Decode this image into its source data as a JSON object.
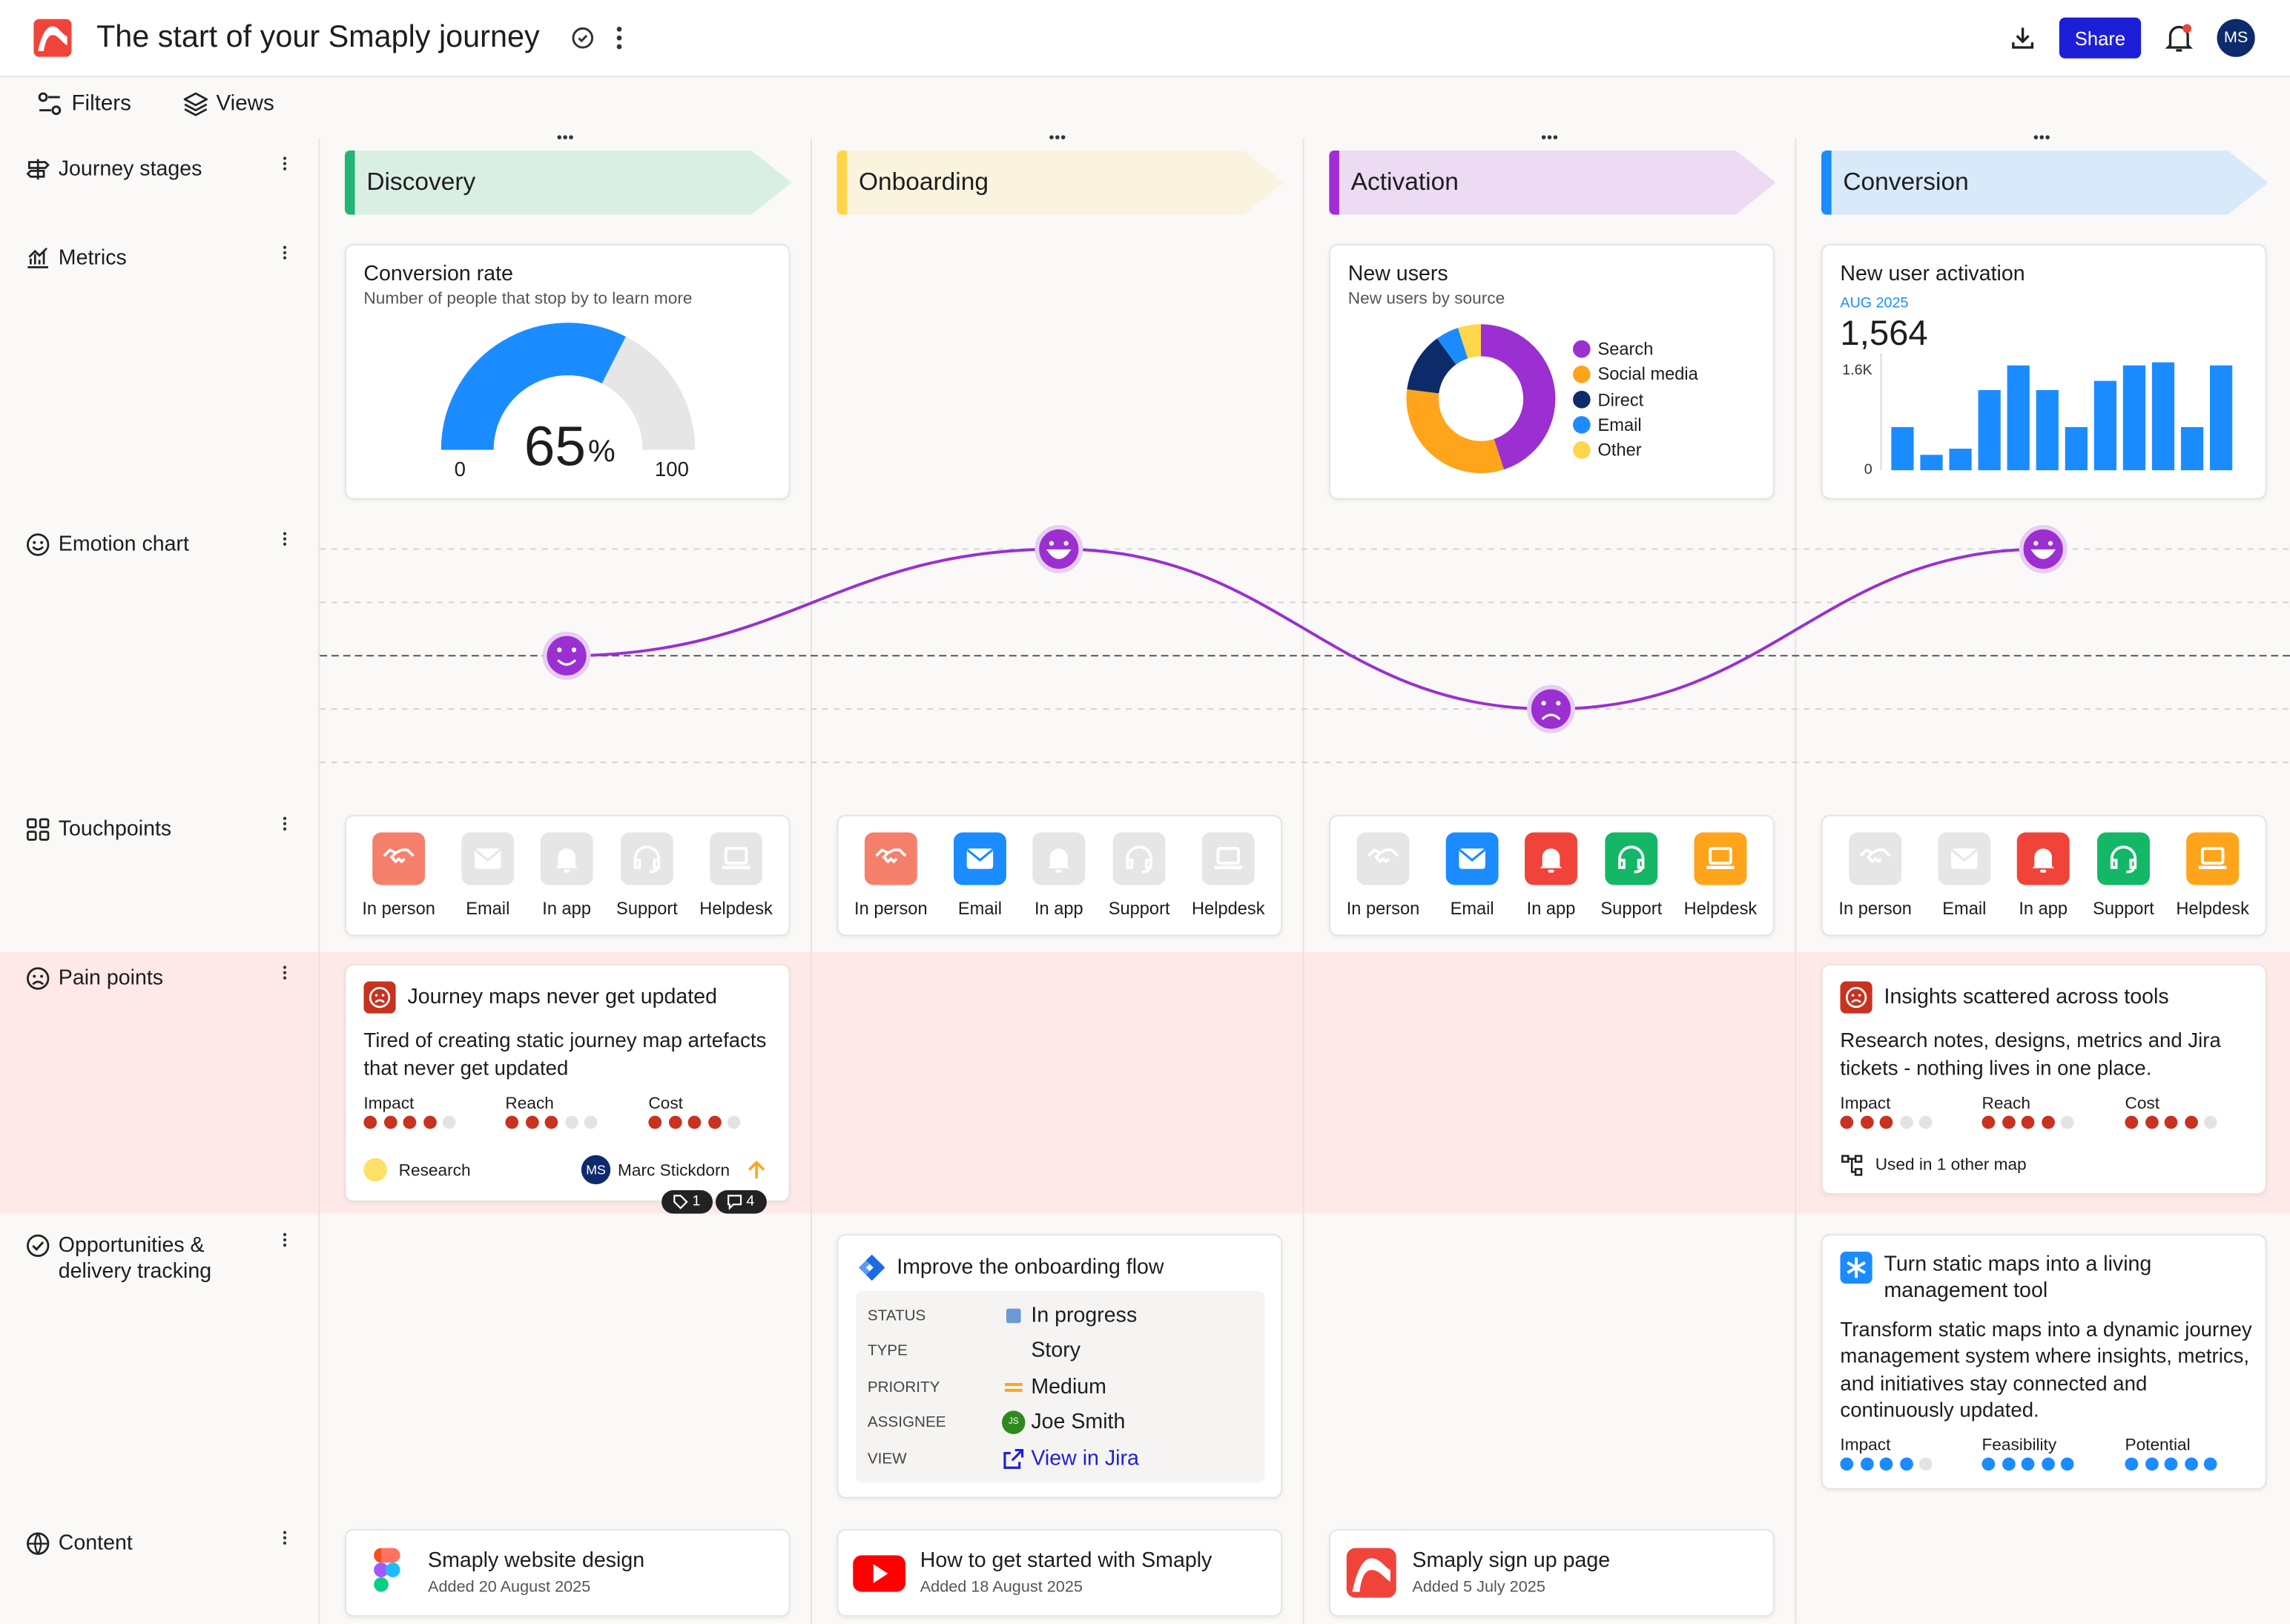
{
  "header": {
    "title": "The start of your Smaply journey",
    "share": "Share",
    "avatar": "MS"
  },
  "toolbar": {
    "filters": "Filters",
    "views": "Views"
  },
  "lanes": [
    "Journey stages",
    "Metrics",
    "Emotion chart",
    "Touchpoints",
    "Pain points",
    "Opportunities & delivery tracking",
    "Content"
  ],
  "stages": [
    {
      "name": "Discovery",
      "color": "#22b573"
    },
    {
      "name": "Onboarding",
      "color": "#ffd54a"
    },
    {
      "name": "Activation",
      "color": "#a02ed6"
    },
    {
      "name": "Conversion",
      "color": "#1a8cff"
    }
  ],
  "metrics": {
    "conversion": {
      "type": "gauge",
      "title": "Conversion rate",
      "subtitle": "Number of people that stop by to learn more",
      "value": 65,
      "unit": "%",
      "min": 0,
      "max": 100,
      "color": "#1a8cff"
    },
    "new_users": {
      "type": "donut",
      "title": "New users",
      "subtitle": "New users by source",
      "series": [
        {
          "name": "Search",
          "color": "#9b2fd1",
          "value": 45
        },
        {
          "name": "Social media",
          "color": "#ffa41b",
          "value": 32
        },
        {
          "name": "Direct",
          "color": "#0d2b6b",
          "value": 13
        },
        {
          "name": "Email",
          "color": "#1a8cff",
          "value": 5
        },
        {
          "name": "Other",
          "color": "#ffd54a",
          "value": 5
        }
      ]
    },
    "activation": {
      "type": "bar",
      "title": "New user activation",
      "period": "AUG 2025",
      "total": {
        "value": 1564,
        "label": "1,564"
      },
      "color": "#1a8cff",
      "values": [
        700,
        250,
        350,
        1300,
        1700,
        1300,
        700,
        1450,
        1700,
        1750,
        700,
        1700
      ],
      "ylim": [
        0,
        1800
      ],
      "yticks": [
        {
          "value": 1600,
          "label": "1.6K"
        },
        0
      ]
    }
  },
  "emotion": {
    "type": "line",
    "values": [
      0,
      2,
      -1,
      2
    ],
    "ylim": [
      -2,
      2
    ],
    "yticks": [
      -2,
      -1,
      0,
      1,
      2
    ],
    "color": "#9b2fd1"
  },
  "touchpoints": {
    "types": [
      {
        "name": "In person",
        "color": "#f4806c"
      },
      {
        "name": "Email",
        "color": "#1a8cff"
      },
      {
        "name": "In app",
        "color": "#f0443a"
      },
      {
        "name": "Support",
        "color": "#13b765"
      },
      {
        "name": "Helpdesk",
        "color": "#ffa41b"
      }
    ],
    "active": [
      [
        true,
        false,
        false,
        false,
        false
      ],
      [
        true,
        true,
        false,
        false,
        false
      ],
      [
        false,
        true,
        true,
        true,
        true
      ],
      [
        false,
        false,
        true,
        true,
        true
      ]
    ]
  },
  "pain_points": {
    "rating_max": 5,
    "rating_color": "#c8321e",
    "cards": [
      {
        "title": "Journey maps never get updated",
        "text": "Tired of creating static journey map artefacts that never get updated",
        "ratings": [
          {
            "name": "Impact",
            "value": 4
          },
          {
            "name": "Reach",
            "value": 3
          },
          {
            "name": "Cost",
            "value": 4
          }
        ],
        "tag": "Research",
        "owner": "Marc Stickdorn",
        "owner_initials": "MS",
        "tags_count": 1,
        "comments_count": 4
      },
      null,
      null,
      {
        "title": "Insights scattered across tools",
        "text": "Research notes, designs, metrics and Jira tickets - nothing lives in one place.",
        "ratings": [
          {
            "name": "Impact",
            "value": 3
          },
          {
            "name": "Reach",
            "value": 4
          },
          {
            "name": "Cost",
            "value": 4
          }
        ],
        "usage": "Used in 1 other map"
      }
    ]
  },
  "opportunities": {
    "rating_max": 5,
    "rating_color": "#1a8cff",
    "cards": [
      null,
      {
        "title": "Improve the onboarding flow",
        "fields": [
          {
            "label": "STATUS",
            "value": "In progress"
          },
          {
            "label": "TYPE",
            "value": "Story"
          },
          {
            "label": "PRIORITY",
            "value": "Medium"
          },
          {
            "label": "ASSIGNEE",
            "value": "Joe Smith",
            "initials": "JS"
          },
          {
            "label": "VIEW",
            "value": "View in Jira"
          }
        ]
      },
      null,
      {
        "title": "Turn static maps into a living management tool",
        "text": "Transform static maps into a dynamic journey management system where insights, metrics, and initiatives stay connected and continuously updated.",
        "ratings": [
          {
            "name": "Impact",
            "value": 4
          },
          {
            "name": "Feasibility",
            "value": 5
          },
          {
            "name": "Potential",
            "value": 5
          }
        ]
      }
    ]
  },
  "content": [
    {
      "title": "Smaply website design",
      "date": "Added 20 August 2025"
    },
    {
      "title": "How to get started with Smaply",
      "date": "Added 18 August 2025"
    },
    {
      "title": "Smaply sign up page",
      "date": "Added 5 July 2025"
    },
    null
  ]
}
